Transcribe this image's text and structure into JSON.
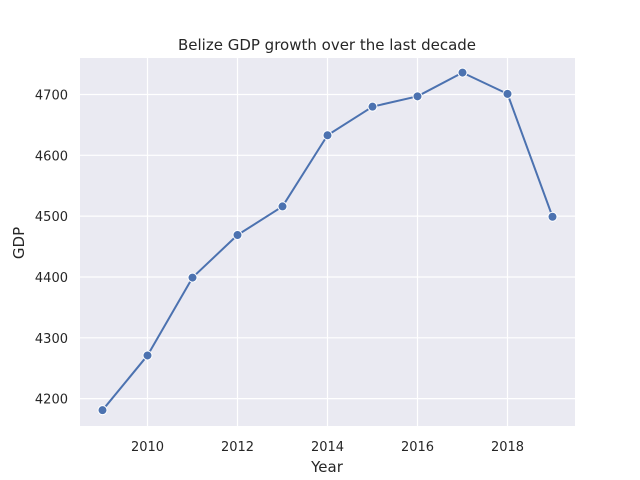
{
  "chart_data": {
    "type": "line",
    "title": "Belize GDP growth over the last decade",
    "xlabel": "Year",
    "ylabel": "GDP",
    "x": [
      2009,
      2010,
      2011,
      2012,
      2013,
      2014,
      2015,
      2016,
      2017,
      2018,
      2019
    ],
    "series": [
      {
        "values": [
          4181,
          4271,
          4399,
          4469,
          4516,
          4633,
          4680,
          4697,
          4736,
          4701,
          4499
        ]
      }
    ],
    "xlim": [
      2008.5,
      2019.5
    ],
    "ylim": [
      4155,
      4760
    ],
    "xticks": [
      2010,
      2012,
      2014,
      2016,
      2018
    ],
    "yticks": [
      4200,
      4300,
      4400,
      4500,
      4600,
      4700
    ],
    "grid": true,
    "colors": {
      "line": "#4c72b0",
      "plot_background": "#eaeaf2",
      "grid": "#ffffff",
      "text": "#262626"
    }
  }
}
